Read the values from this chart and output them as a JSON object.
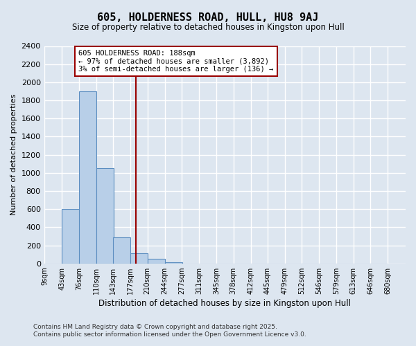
{
  "title": "605, HOLDERNESS ROAD, HULL, HU8 9AJ",
  "subtitle": "Size of property relative to detached houses in Kingston upon Hull",
  "xlabel": "Distribution of detached houses by size in Kingston upon Hull",
  "ylabel": "Number of detached properties",
  "bin_labels": [
    "9sqm",
    "43sqm",
    "76sqm",
    "110sqm",
    "143sqm",
    "177sqm",
    "210sqm",
    "244sqm",
    "277sqm",
    "311sqm",
    "345sqm",
    "378sqm",
    "412sqm",
    "445sqm",
    "479sqm",
    "512sqm",
    "546sqm",
    "579sqm",
    "613sqm",
    "646sqm",
    "680sqm"
  ],
  "bin_edges": [
    9,
    43,
    76,
    110,
    143,
    177,
    210,
    244,
    277,
    311,
    345,
    378,
    412,
    445,
    479,
    512,
    546,
    579,
    613,
    646,
    680
  ],
  "bin_width": 34,
  "bar_heights": [
    0,
    600,
    1900,
    1050,
    290,
    110,
    50,
    15,
    0,
    0,
    0,
    0,
    0,
    0,
    0,
    0,
    0,
    0,
    0,
    0
  ],
  "bar_color": "#b8cfe8",
  "bar_edge_color": "#5b8dc0",
  "property_size": 188,
  "vline_color": "#990000",
  "annotation_text": "605 HOLDERNESS ROAD: 188sqm\n← 97% of detached houses are smaller (3,892)\n3% of semi-detached houses are larger (136) →",
  "annotation_box_color": "#ffffff",
  "annotation_box_edge": "#990000",
  "ylim": [
    0,
    2400
  ],
  "yticks": [
    0,
    200,
    400,
    600,
    800,
    1000,
    1200,
    1400,
    1600,
    1800,
    2000,
    2200,
    2400
  ],
  "bg_color": "#dde6f0",
  "grid_color": "#ffffff",
  "footer_line1": "Contains HM Land Registry data © Crown copyright and database right 2025.",
  "footer_line2": "Contains public sector information licensed under the Open Government Licence v3.0."
}
